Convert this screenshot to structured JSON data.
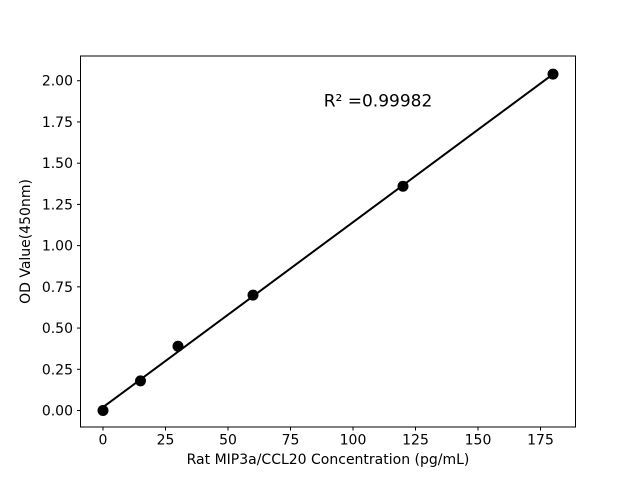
{
  "window": {
    "background": "#ffffff"
  },
  "chart_data": {
    "type": "scatter",
    "title": "",
    "xlabel": "Rat MIP3a/CCL20 Concentration (pg/mL)",
    "ylabel": "OD Value(450nm)",
    "x": [
      0,
      15,
      30,
      60,
      120,
      180
    ],
    "y": [
      0.0,
      0.18,
      0.39,
      0.7,
      1.36,
      2.04
    ],
    "fit_line": {
      "x": [
        0,
        180
      ],
      "y": [
        0.02,
        2.04
      ],
      "r_squared": 0.99982
    },
    "annotation": {
      "text": "R² =0.99982",
      "x": 110,
      "y": 1.88
    },
    "xlim": [
      -9,
      189
    ],
    "ylim": [
      -0.1,
      2.15
    ],
    "xticks": [
      {
        "value": 0,
        "label": "0"
      },
      {
        "value": 25,
        "label": "25"
      },
      {
        "value": 50,
        "label": "50"
      },
      {
        "value": 75,
        "label": "75"
      },
      {
        "value": 100,
        "label": "100"
      },
      {
        "value": 125,
        "label": "125"
      },
      {
        "value": 150,
        "label": "150"
      },
      {
        "value": 175,
        "label": "175"
      }
    ],
    "yticks": [
      {
        "value": 0.0,
        "label": "0.00"
      },
      {
        "value": 0.25,
        "label": "0.25"
      },
      {
        "value": 0.5,
        "label": "0.50"
      },
      {
        "value": 0.75,
        "label": "0.75"
      },
      {
        "value": 1.0,
        "label": "1.00"
      },
      {
        "value": 1.25,
        "label": "1.25"
      },
      {
        "value": 1.5,
        "label": "1.50"
      },
      {
        "value": 1.75,
        "label": "1.75"
      },
      {
        "value": 2.0,
        "label": "2.00"
      }
    ],
    "grid": false,
    "legend": null,
    "marker_color": "#000000",
    "line_color": "#000000",
    "axis_color": "#000000",
    "background_color": "#ffffff"
  }
}
